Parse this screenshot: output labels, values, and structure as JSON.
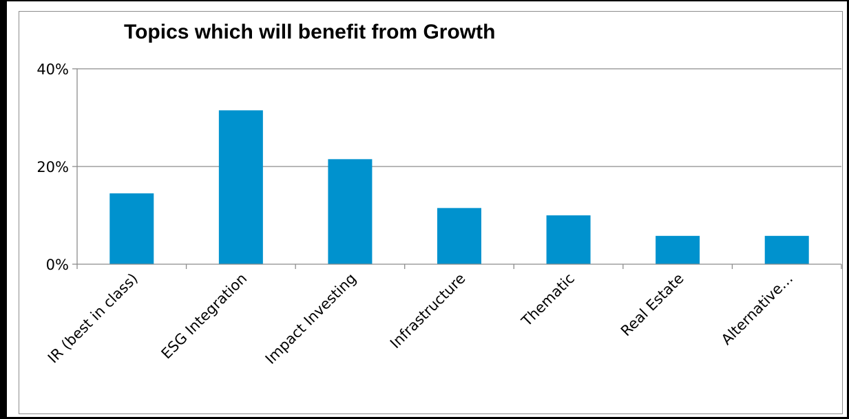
{
  "chart_data": {
    "type": "bar",
    "title": "Topics which will benefit from Growth",
    "categories": [
      "IR (best in class)",
      "ESG Integration",
      "Impact Investing",
      "Infrastructure",
      "Thematic",
      "Real Estate",
      "Alternative…"
    ],
    "values": [
      14.5,
      31.5,
      21.5,
      11.5,
      10,
      5.8,
      5.8
    ],
    "ylim": [
      0,
      40
    ],
    "yticks": [
      "0%",
      "20%",
      "40%"
    ],
    "ytick_values": [
      0,
      20,
      40
    ],
    "grid": true,
    "legend": "none",
    "colors": {
      "bar": "#0092CE",
      "grid": "#8c8c8c",
      "axis": "#8c8c8c"
    }
  }
}
